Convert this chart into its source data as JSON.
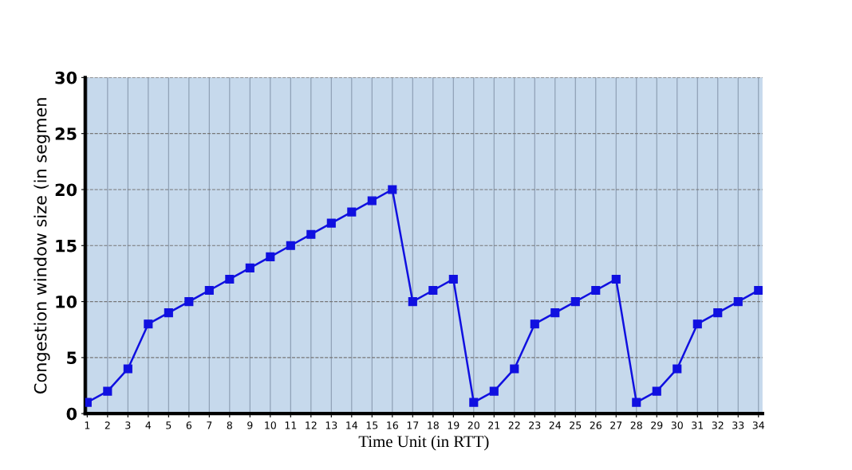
{
  "chart_data": {
    "type": "line",
    "xlabel": "Time Unit (in RTT)",
    "ylabel": "Congestion window size (in segmen",
    "x": [
      1,
      2,
      3,
      4,
      5,
      6,
      7,
      8,
      9,
      10,
      11,
      12,
      13,
      14,
      15,
      16,
      17,
      18,
      19,
      20,
      21,
      22,
      23,
      24,
      25,
      26,
      27,
      28,
      29,
      30,
      31,
      32,
      33,
      34
    ],
    "series": [
      {
        "color": "#1010e0",
        "values": [
          1,
          2,
          4,
          8,
          9,
          10,
          11,
          12,
          13,
          14,
          15,
          16,
          17,
          18,
          19,
          20,
          10,
          11,
          12,
          1,
          2,
          4,
          8,
          9,
          10,
          11,
          12,
          1,
          2,
          4,
          8,
          9,
          10,
          11
        ]
      }
    ],
    "xlim": [
      0.9,
      34.2
    ],
    "xticks": [
      1,
      2,
      3,
      4,
      5,
      6,
      7,
      8,
      9,
      10,
      11,
      12,
      13,
      14,
      15,
      16,
      17,
      18,
      19,
      20,
      21,
      22,
      23,
      24,
      25,
      26,
      27,
      28,
      29,
      30,
      31,
      32,
      33,
      34
    ],
    "ylim": [
      0,
      30
    ],
    "yticks": [
      0,
      5,
      10,
      15,
      20,
      25,
      30
    ],
    "grid": true,
    "marker": "square",
    "line_style": "solid"
  }
}
